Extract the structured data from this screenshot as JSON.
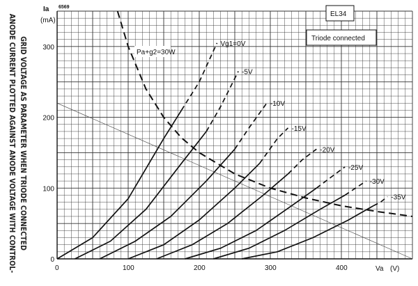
{
  "figure_code": "6569",
  "tube": "EL34",
  "mode": "Triode connected",
  "side_caption": {
    "line1": "ANODE CURRENT PLOTTED AGAINST ANODE VOLTAGE WITH CONTROL-",
    "line2": "GRID VOLTAGE AS PARAMETER WHEN TRIODE CONNECTED"
  },
  "power_label": "Pa+g2=30W",
  "chart_data": {
    "type": "line",
    "title": "EL34",
    "subtitle": "Triode connected",
    "ylabel": "Ia",
    "ylabel_unit": "(mA)",
    "xlabel": "Va",
    "xlabel_unit": "(V)",
    "xlim": [
      0,
      500
    ],
    "ylim": [
      0,
      350
    ],
    "x_ticks": [
      0,
      100,
      200,
      300,
      400
    ],
    "y_ticks": [
      0,
      100,
      200,
      300
    ],
    "grid": true,
    "series": [
      {
        "name": "Vg1=0V",
        "points": [
          [
            0,
            0
          ],
          [
            50,
            30
          ],
          [
            100,
            85
          ],
          [
            150,
            170
          ],
          [
            175,
            210
          ]
        ],
        "dashed_from_x": 175,
        "dashed_points": [
          [
            175,
            210
          ],
          [
            200,
            250
          ],
          [
            225,
            305
          ]
        ]
      },
      {
        "name": "-5V",
        "points": [
          [
            25,
            0
          ],
          [
            75,
            25
          ],
          [
            125,
            70
          ],
          [
            175,
            135
          ],
          [
            210,
            180
          ]
        ],
        "dashed_from_x": 210,
        "dashed_points": [
          [
            210,
            180
          ],
          [
            230,
            215
          ],
          [
            255,
            265
          ]
        ]
      },
      {
        "name": "-10V",
        "points": [
          [
            60,
            0
          ],
          [
            110,
            25
          ],
          [
            160,
            60
          ],
          [
            210,
            110
          ],
          [
            250,
            155
          ]
        ],
        "dashed_from_x": 250,
        "dashed_points": [
          [
            250,
            155
          ],
          [
            270,
            185
          ],
          [
            295,
            220
          ]
        ]
      },
      {
        "name": "-15V",
        "points": [
          [
            100,
            0
          ],
          [
            150,
            20
          ],
          [
            200,
            55
          ],
          [
            250,
            100
          ],
          [
            285,
            135
          ]
        ],
        "dashed_from_x": 285,
        "dashed_points": [
          [
            285,
            135
          ],
          [
            310,
            170
          ],
          [
            325,
            185
          ]
        ]
      },
      {
        "name": "-20V",
        "points": [
          [
            140,
            0
          ],
          [
            190,
            20
          ],
          [
            240,
            50
          ],
          [
            290,
            90
          ],
          [
            325,
            120
          ]
        ],
        "dashed_from_x": 325,
        "dashed_points": [
          [
            325,
            120
          ],
          [
            345,
            140
          ],
          [
            365,
            155
          ]
        ]
      },
      {
        "name": "-25V",
        "points": [
          [
            180,
            0
          ],
          [
            230,
            15
          ],
          [
            280,
            40
          ],
          [
            330,
            75
          ],
          [
            365,
            100
          ]
        ],
        "dashed_from_x": 365,
        "dashed_points": [
          [
            365,
            100
          ],
          [
            385,
            115
          ],
          [
            405,
            130
          ]
        ]
      },
      {
        "name": "-30V",
        "points": [
          [
            220,
            0
          ],
          [
            270,
            15
          ],
          [
            320,
            40
          ],
          [
            370,
            70
          ],
          [
            405,
            90
          ]
        ],
        "dashed_from_x": 405,
        "dashed_points": [
          [
            405,
            90
          ],
          [
            420,
            100
          ],
          [
            435,
            110
          ]
        ]
      },
      {
        "name": "-35V",
        "points": [
          [
            260,
            0
          ],
          [
            310,
            10
          ],
          [
            360,
            30
          ],
          [
            410,
            55
          ],
          [
            445,
            75
          ]
        ],
        "dashed_from_x": 445,
        "dashed_points": [
          [
            445,
            75
          ],
          [
            455,
            80
          ],
          [
            465,
            88
          ]
        ]
      }
    ],
    "power_hyperbola": {
      "name": "Pa+g2=30W",
      "points": [
        [
          85,
          350
        ],
        [
          100,
          300
        ],
        [
          125,
          240
        ],
        [
          150,
          200
        ],
        [
          175,
          171
        ],
        [
          200,
          150
        ],
        [
          250,
          120
        ],
        [
          300,
          100
        ],
        [
          350,
          86
        ],
        [
          400,
          75
        ],
        [
          450,
          67
        ],
        [
          500,
          60
        ]
      ]
    },
    "load_line": {
      "points": [
        [
          0,
          220
        ],
        [
          500,
          0
        ]
      ]
    }
  }
}
